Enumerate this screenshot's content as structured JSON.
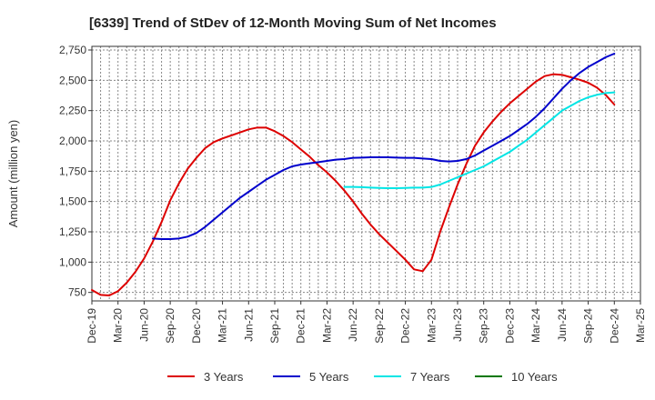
{
  "chart_data": {
    "type": "line",
    "title": "[6339]  Trend of StDev of 12-Month Moving Sum of Net Incomes",
    "ylabel": "Amount (million yen)",
    "xlabel": "",
    "ylim": [
      680,
      2780
    ],
    "yticks": [
      750,
      1000,
      1250,
      1500,
      1750,
      2000,
      2250,
      2500,
      2750
    ],
    "ytick_labels": [
      "750",
      "1,000",
      "1,250",
      "1,500",
      "1,750",
      "2,000",
      "2,250",
      "2,500",
      "2,750"
    ],
    "xticks": [
      "Dec-19",
      "Mar-20",
      "Jun-20",
      "Sep-20",
      "Dec-20",
      "Mar-21",
      "Jun-21",
      "Sep-21",
      "Dec-21",
      "Mar-22",
      "Jun-22",
      "Sep-22",
      "Dec-22",
      "Mar-23",
      "Jun-23",
      "Sep-23",
      "Dec-23",
      "Mar-24",
      "Jun-24",
      "Sep-24",
      "Dec-24",
      "Mar-25"
    ],
    "grid": true,
    "legend_position": "bottom",
    "series": [
      {
        "name": "3 Years",
        "color": "#dd0000",
        "values": [
          770,
          730,
          725,
          760,
          830,
          920,
          1030,
          1170,
          1330,
          1510,
          1650,
          1770,
          1860,
          1940,
          1990,
          2020,
          2045,
          2070,
          2095,
          2110,
          2110,
          2080,
          2040,
          1990,
          1930,
          1870,
          1800,
          1740,
          1670,
          1590,
          1500,
          1400,
          1310,
          1230,
          1160,
          1090,
          1020,
          940,
          925,
          1020,
          1250,
          1450,
          1640,
          1810,
          1960,
          2070,
          2160,
          2240,
          2310,
          2370,
          2430,
          2490,
          2535,
          2550,
          2545,
          2525,
          2505,
          2480,
          2440,
          2380,
          2300
        ]
      },
      {
        "name": "5 Years",
        "color": "#0000cc",
        "values": [
          null,
          null,
          null,
          null,
          null,
          null,
          null,
          1195,
          1190,
          1190,
          1195,
          1210,
          1240,
          1290,
          1350,
          1410,
          1470,
          1530,
          1580,
          1630,
          1680,
          1720,
          1760,
          1790,
          1805,
          1815,
          1825,
          1835,
          1845,
          1850,
          1860,
          1862,
          1865,
          1865,
          1865,
          1862,
          1860,
          1860,
          1855,
          1850,
          1835,
          1830,
          1835,
          1850,
          1880,
          1920,
          1960,
          2000,
          2040,
          2090,
          2140,
          2200,
          2270,
          2350,
          2430,
          2500,
          2560,
          2610,
          2650,
          2690,
          2720
        ]
      },
      {
        "name": "7 Years",
        "color": "#00e5e5",
        "values": [
          null,
          null,
          null,
          null,
          null,
          null,
          null,
          null,
          null,
          null,
          null,
          null,
          null,
          null,
          null,
          null,
          null,
          null,
          null,
          null,
          null,
          null,
          null,
          null,
          null,
          null,
          null,
          null,
          null,
          1620,
          1620,
          1618,
          1615,
          1612,
          1610,
          1610,
          1612,
          1615,
          1615,
          1620,
          1640,
          1670,
          1700,
          1730,
          1760,
          1790,
          1830,
          1870,
          1910,
          1960,
          2010,
          2070,
          2130,
          2190,
          2250,
          2290,
          2330,
          2360,
          2380,
          2395,
          2400
        ]
      },
      {
        "name": "10 Years",
        "color": "#007700",
        "values": []
      }
    ]
  }
}
